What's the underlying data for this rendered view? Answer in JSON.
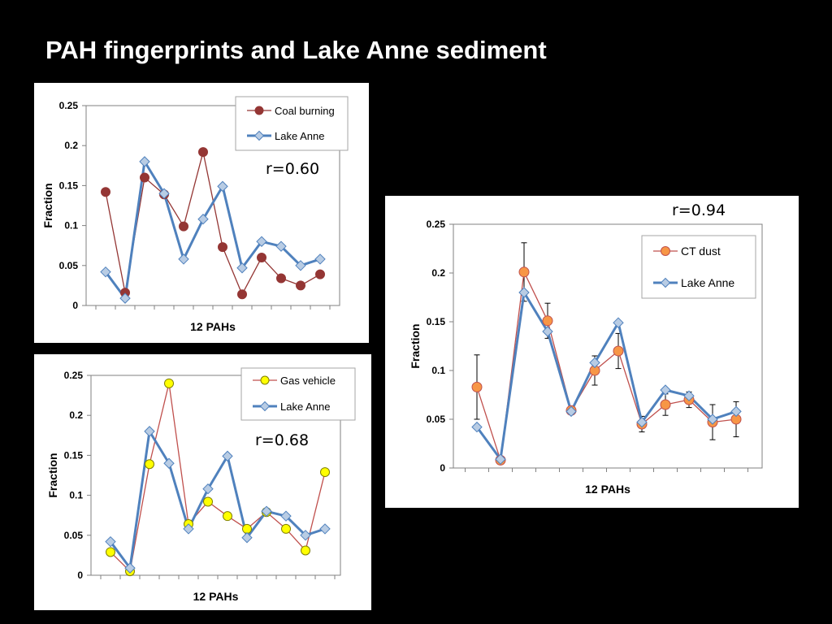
{
  "slide": {
    "title": "PAH fingerprints and Lake Anne sediment"
  },
  "colors": {
    "lake_anne_line": "#4f81bd",
    "lake_anne_marker": "#b8cce4",
    "coal_burning": "#943634",
    "gas_vehicle": "#ffff00",
    "gas_vehicle_line": "#c0504d",
    "ct_dust": "#f79646"
  },
  "chart_data": [
    {
      "type": "line",
      "xlabel": "12 PAHs",
      "ylabel": "Fraction",
      "ylim": [
        0,
        0.25
      ],
      "yticks": [
        "0.25",
        "0.2",
        "0.15",
        "0.1",
        "0.05",
        "0"
      ],
      "annotation": "r=0.60",
      "legend_position": "top-right",
      "x": [
        1,
        2,
        3,
        4,
        5,
        6,
        7,
        8,
        9,
        10,
        11,
        12
      ],
      "series": [
        {
          "name": "Coal burning",
          "values": [
            0.142,
            0.016,
            0.16,
            0.139,
            0.099,
            0.192,
            0.073,
            0.014,
            0.06,
            0.034,
            0.025,
            0.039
          ]
        },
        {
          "name": "Lake Anne",
          "values": [
            0.042,
            0.009,
            0.18,
            0.14,
            0.058,
            0.108,
            0.149,
            0.047,
            0.08,
            0.074,
            0.05,
            0.058
          ]
        }
      ]
    },
    {
      "type": "line",
      "xlabel": "12 PAHs",
      "ylabel": "Fraction",
      "ylim": [
        0,
        0.25
      ],
      "yticks": [
        "0.25",
        "0.2",
        "0.15",
        "0.1",
        "0.05",
        "0"
      ],
      "annotation": "r=0.68",
      "legend_position": "top-right",
      "x": [
        1,
        2,
        3,
        4,
        5,
        6,
        7,
        8,
        9,
        10,
        11,
        12
      ],
      "series": [
        {
          "name": "Gas vehicle",
          "values": [
            0.029,
            0.005,
            0.139,
            0.24,
            0.064,
            0.092,
            0.074,
            0.058,
            0.079,
            0.058,
            0.031,
            0.129
          ]
        },
        {
          "name": "Lake Anne",
          "values": [
            0.042,
            0.009,
            0.18,
            0.14,
            0.058,
            0.108,
            0.149,
            0.047,
            0.08,
            0.074,
            0.05,
            0.058
          ]
        }
      ]
    },
    {
      "type": "line",
      "xlabel": "12 PAHs",
      "ylabel": "Fraction",
      "ylim": [
        0,
        0.25
      ],
      "yticks": [
        "0.25",
        "0.2",
        "0.15",
        "0.1",
        "0.05",
        "0"
      ],
      "annotation": "r=0.94",
      "legend_position": "top-right",
      "x": [
        1,
        2,
        3,
        4,
        5,
        6,
        7,
        8,
        9,
        10,
        11,
        12
      ],
      "series": [
        {
          "name": "CT dust",
          "values": [
            0.083,
            0.008,
            0.201,
            0.151,
            0.059,
            0.1,
            0.12,
            0.045,
            0.065,
            0.07,
            0.047,
            0.05
          ],
          "error": [
            0.033,
            0.002,
            0.03,
            0.018,
            0.004,
            0.015,
            0.018,
            0.008,
            0.011,
            0.008,
            0.018,
            0.018
          ]
        },
        {
          "name": "Lake Anne",
          "values": [
            0.042,
            0.009,
            0.18,
            0.14,
            0.058,
            0.108,
            0.149,
            0.047,
            0.08,
            0.074,
            0.05,
            0.058
          ]
        }
      ]
    }
  ]
}
